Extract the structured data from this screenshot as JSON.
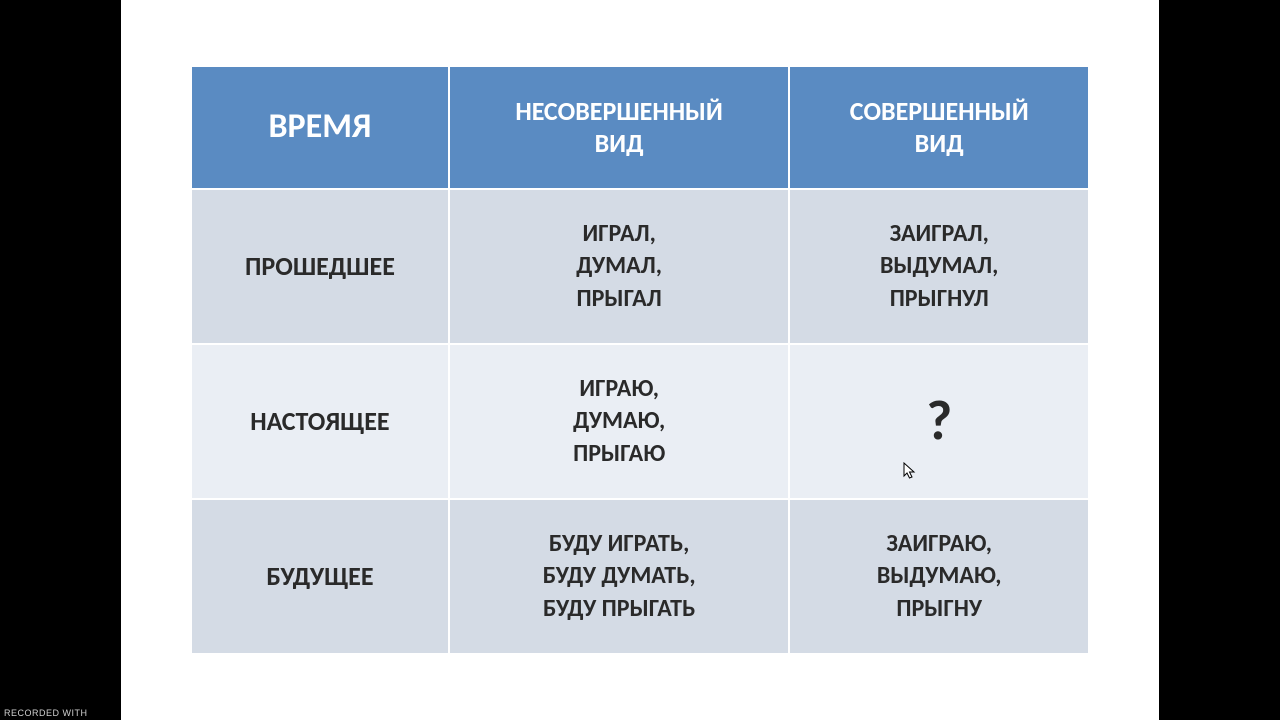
{
  "table": {
    "header_bg": "#5a8bc2",
    "header_fg": "#ffffff",
    "row_bg_dark": "#d4dbe5",
    "row_bg_light": "#eaeef4",
    "text_color": "#2a2a2a",
    "headers": {
      "col0": "ВРЕМЯ",
      "col1": "НЕСОВЕРШЕННЫЙ\nВИД",
      "col2": "СОВЕРШЕННЫЙ\nВИД"
    },
    "rows": [
      {
        "label": "ПРОШЕДШЕЕ",
        "imperfective": "ИГРАЛ,\nДУМАЛ,\nПРЫГАЛ",
        "perfective": "ЗАИГРАЛ,\nВЫДУМАЛ,\nПРЫГНУЛ"
      },
      {
        "label": "НАСТОЯЩЕЕ",
        "imperfective": "ИГРАЮ,\nДУМАЮ,\nПРЫГАЮ",
        "perfective": "?"
      },
      {
        "label": "БУДУЩЕЕ",
        "imperfective": "БУДУ ИГРАТЬ,\nБУДУ ДУМАТЬ,\nБУДУ ПРЫГАТЬ",
        "perfective": "ЗАИГРАЮ,\nВЫДУМАЮ,\nПРЫГНУ"
      }
    ]
  },
  "watermark": "RECORDED WITH"
}
